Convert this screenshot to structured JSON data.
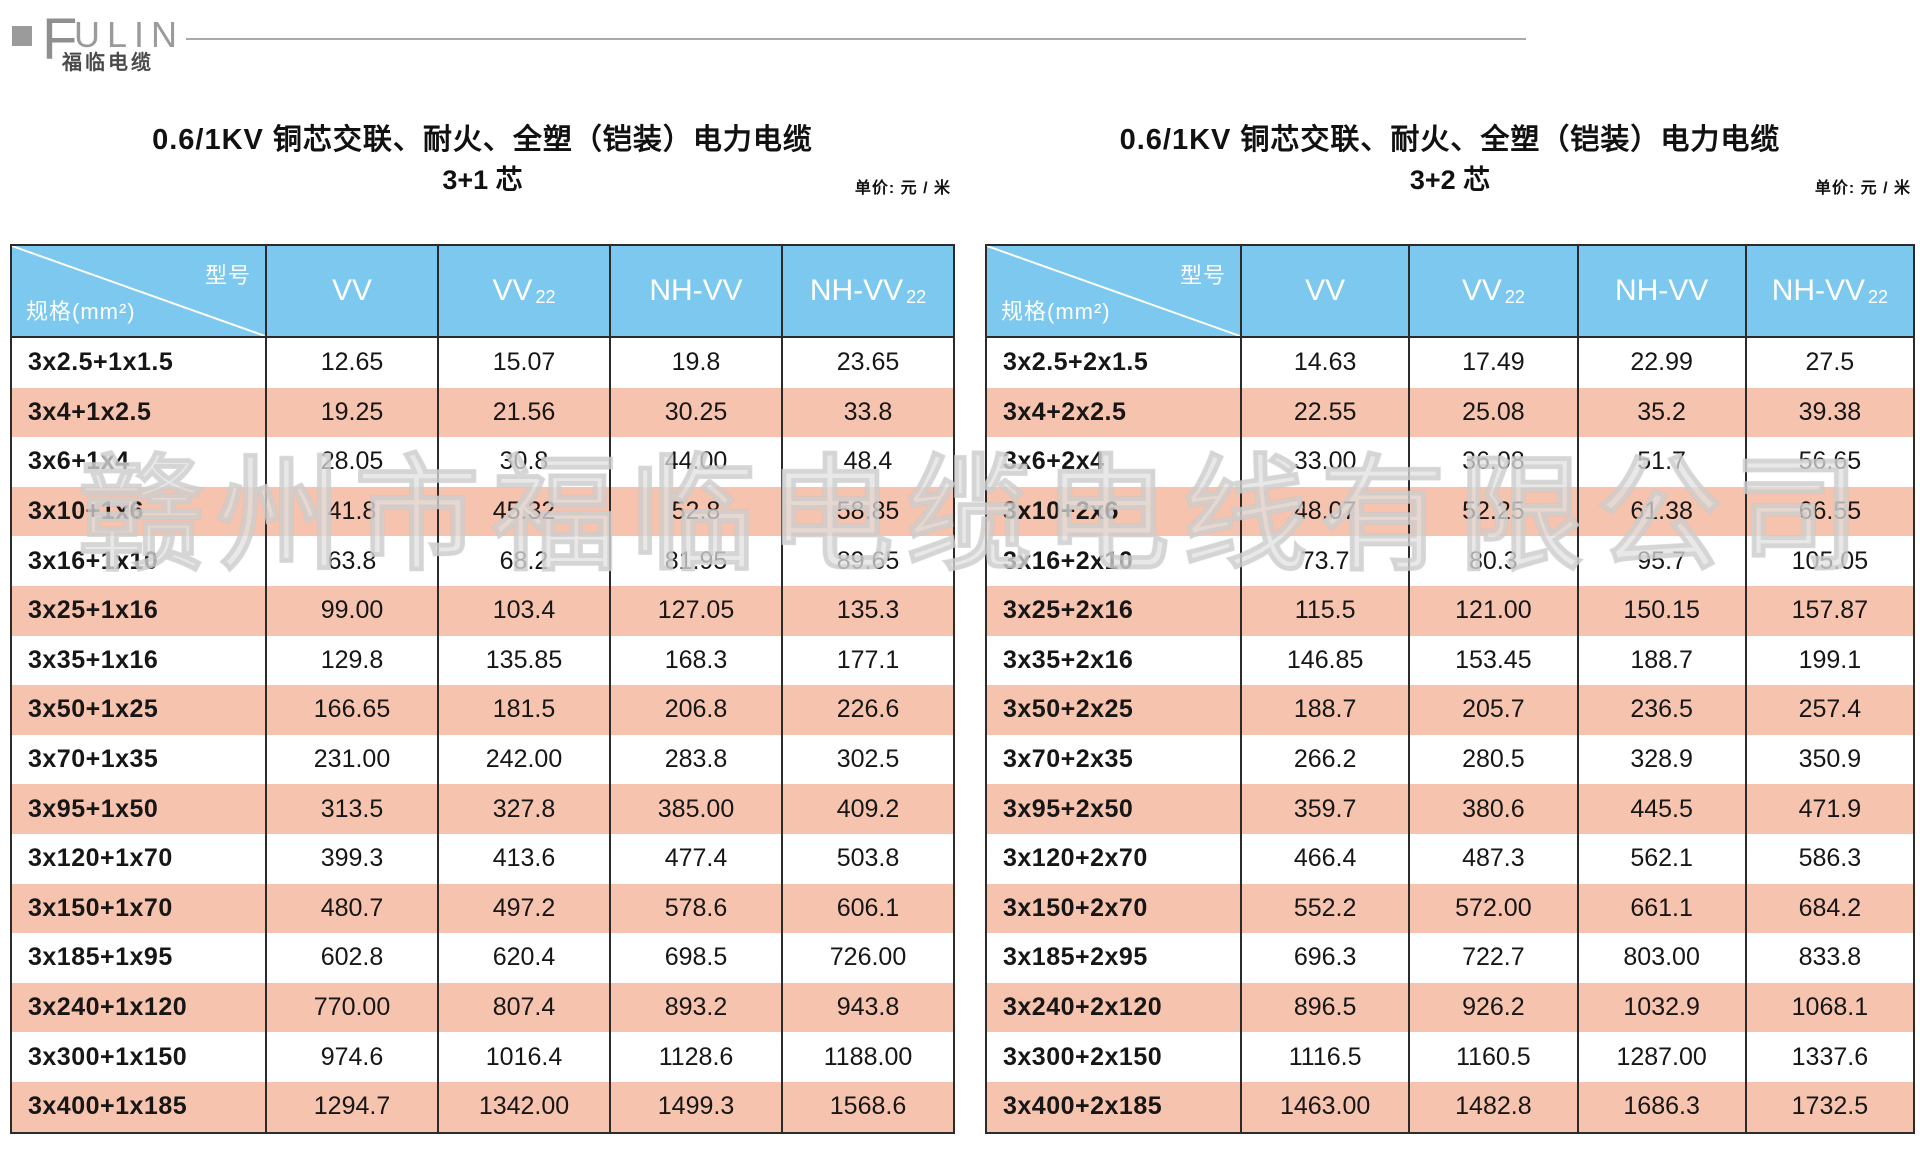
{
  "logo": {
    "brand_initial": "F",
    "brand_rest": "ULIN",
    "brand_cn": "福临电缆"
  },
  "watermark": "赣州市福临电缆电线有限公司",
  "header": {
    "type_label": "型号",
    "spec_label": "规格(mm²)"
  },
  "columns": [
    {
      "name": "VV",
      "sub": ""
    },
    {
      "name": "VV",
      "sub": "22"
    },
    {
      "name": "NH-VV",
      "sub": ""
    },
    {
      "name": "NH-VV",
      "sub": "22"
    }
  ],
  "tables": [
    {
      "title": "0.6/1KV 铜芯交联、耐火、全塑（铠装）电力电缆",
      "subtitle": "3+1 芯",
      "unit_label": "单价: 元 / 米",
      "rows": [
        {
          "spec": "3x2.5+1x1.5",
          "values": [
            "12.65",
            "15.07",
            "19.8",
            "23.65"
          ]
        },
        {
          "spec": "3x4+1x2.5",
          "values": [
            "19.25",
            "21.56",
            "30.25",
            "33.8"
          ]
        },
        {
          "spec": "3x6+1x4",
          "values": [
            "28.05",
            "30.8",
            "44.00",
            "48.4"
          ]
        },
        {
          "spec": "3x10+1x6",
          "values": [
            "41.8",
            "45.32",
            "52.8",
            "58.85"
          ]
        },
        {
          "spec": "3x16+1x10",
          "values": [
            "63.8",
            "68.2",
            "81.95",
            "89.65"
          ]
        },
        {
          "spec": "3x25+1x16",
          "values": [
            "99.00",
            "103.4",
            "127.05",
            "135.3"
          ]
        },
        {
          "spec": "3x35+1x16",
          "values": [
            "129.8",
            "135.85",
            "168.3",
            "177.1"
          ]
        },
        {
          "spec": "3x50+1x25",
          "values": [
            "166.65",
            "181.5",
            "206.8",
            "226.6"
          ]
        },
        {
          "spec": "3x70+1x35",
          "values": [
            "231.00",
            "242.00",
            "283.8",
            "302.5"
          ]
        },
        {
          "spec": "3x95+1x50",
          "values": [
            "313.5",
            "327.8",
            "385.00",
            "409.2"
          ]
        },
        {
          "spec": "3x120+1x70",
          "values": [
            "399.3",
            "413.6",
            "477.4",
            "503.8"
          ]
        },
        {
          "spec": "3x150+1x70",
          "values": [
            "480.7",
            "497.2",
            "578.6",
            "606.1"
          ]
        },
        {
          "spec": "3x185+1x95",
          "values": [
            "602.8",
            "620.4",
            "698.5",
            "726.00"
          ]
        },
        {
          "spec": "3x240+1x120",
          "values": [
            "770.00",
            "807.4",
            "893.2",
            "943.8"
          ]
        },
        {
          "spec": "3x300+1x150",
          "values": [
            "974.6",
            "1016.4",
            "1128.6",
            "1188.00"
          ]
        },
        {
          "spec": "3x400+1x185",
          "values": [
            "1294.7",
            "1342.00",
            "1499.3",
            "1568.6"
          ]
        }
      ]
    },
    {
      "title": "0.6/1KV 铜芯交联、耐火、全塑（铠装）电力电缆",
      "subtitle": "3+2 芯",
      "unit_label": "单价: 元 / 米",
      "rows": [
        {
          "spec": "3x2.5+2x1.5",
          "values": [
            "14.63",
            "17.49",
            "22.99",
            "27.5"
          ]
        },
        {
          "spec": "3x4+2x2.5",
          "values": [
            "22.55",
            "25.08",
            "35.2",
            "39.38"
          ]
        },
        {
          "spec": "3x6+2x4",
          "values": [
            "33.00",
            "36.08",
            "51.7",
            "56.65"
          ]
        },
        {
          "spec": "3x10+2x6",
          "values": [
            "48.07",
            "52.25",
            "61.38",
            "66.55"
          ]
        },
        {
          "spec": "3x16+2x10",
          "values": [
            "73.7",
            "80.3",
            "95.7",
            "105.05"
          ]
        },
        {
          "spec": "3x25+2x16",
          "values": [
            "115.5",
            "121.00",
            "150.15",
            "157.87"
          ]
        },
        {
          "spec": "3x35+2x16",
          "values": [
            "146.85",
            "153.45",
            "188.7",
            "199.1"
          ]
        },
        {
          "spec": "3x50+2x25",
          "values": [
            "188.7",
            "205.7",
            "236.5",
            "257.4"
          ]
        },
        {
          "spec": "3x70+2x35",
          "values": [
            "266.2",
            "280.5",
            "328.9",
            "350.9"
          ]
        },
        {
          "spec": "3x95+2x50",
          "values": [
            "359.7",
            "380.6",
            "445.5",
            "471.9"
          ]
        },
        {
          "spec": "3x120+2x70",
          "values": [
            "466.4",
            "487.3",
            "562.1",
            "586.3"
          ]
        },
        {
          "spec": "3x150+2x70",
          "values": [
            "552.2",
            "572.00",
            "661.1",
            "684.2"
          ]
        },
        {
          "spec": "3x185+2x95",
          "values": [
            "696.3",
            "722.7",
            "803.00",
            "833.8"
          ]
        },
        {
          "spec": "3x240+2x120",
          "values": [
            "896.5",
            "926.2",
            "1032.9",
            "1068.1"
          ]
        },
        {
          "spec": "3x300+2x150",
          "values": [
            "1116.5",
            "1160.5",
            "1287.00",
            "1337.6"
          ]
        },
        {
          "spec": "3x400+2x185",
          "values": [
            "1463.00",
            "1482.8",
            "1686.3",
            "1732.5"
          ]
        }
      ]
    }
  ],
  "colors": {
    "header_bg": "#7cc8ef",
    "row_alt_bg": "#f6c3ae",
    "border": "#2b2b2b"
  }
}
